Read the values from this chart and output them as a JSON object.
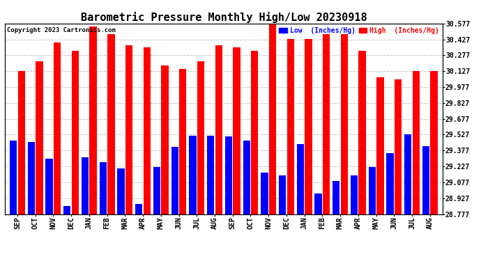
{
  "title": "Barometric Pressure Monthly High/Low 20230918",
  "copyright": "Copyright 2023 Cartronics.com",
  "ylabel_right_ticks": [
    28.777,
    28.927,
    29.077,
    29.227,
    29.377,
    29.527,
    29.677,
    29.827,
    29.977,
    30.127,
    30.277,
    30.427,
    30.577
  ],
  "ylim": [
    28.777,
    30.577
  ],
  "months": [
    "SEP",
    "OCT",
    "NOV",
    "DEC",
    "JAN",
    "FEB",
    "MAR",
    "APR",
    "MAY",
    "JUN",
    "JUL",
    "AUG",
    "SEP",
    "OCT",
    "NOV",
    "DEC",
    "JAN",
    "FEB",
    "MAR",
    "APR",
    "MAY",
    "JUN",
    "JUL",
    "AUG"
  ],
  "high_values": [
    30.13,
    30.22,
    30.4,
    30.32,
    30.55,
    30.48,
    30.37,
    30.35,
    30.18,
    30.15,
    30.22,
    30.37,
    30.35,
    30.32,
    30.57,
    30.43,
    30.43,
    30.48,
    30.48,
    30.32,
    30.07,
    30.05,
    30.13,
    30.13
  ],
  "low_values": [
    29.47,
    29.46,
    29.3,
    28.85,
    29.31,
    29.27,
    29.21,
    28.87,
    29.22,
    29.41,
    29.52,
    29.52,
    29.51,
    29.47,
    29.17,
    29.14,
    29.44,
    28.97,
    29.09,
    29.14,
    29.22,
    29.35,
    29.53,
    29.42
  ],
  "high_color": "#ff0000",
  "low_color": "#0000ff",
  "background_color": "#ffffff",
  "grid_color": "#bbbbbb",
  "title_fontsize": 11,
  "tick_fontsize": 7,
  "legend_low_label": "Low  (Inches/Hg)",
  "legend_high_label": "High  (Inches/Hg)"
}
